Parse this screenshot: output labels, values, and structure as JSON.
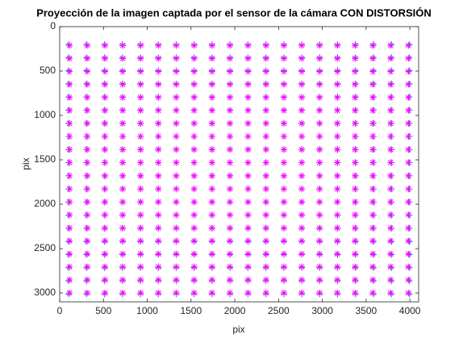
{
  "chart_data": {
    "type": "scatter",
    "title": "Proyección de la imagen captada por el sensor de la cámara CON DISTORSIÓN",
    "x_label": "pix",
    "y_label": "pix",
    "xlim": [
      0,
      4100
    ],
    "ylim": [
      0,
      3100
    ],
    "y_reversed": true,
    "xticks": [
      0,
      500,
      1000,
      1500,
      2000,
      2500,
      3000,
      3500,
      4000
    ],
    "yticks": [
      0,
      500,
      1000,
      1500,
      2000,
      2500,
      3000
    ],
    "series": [
      {
        "marker": "plus",
        "color": "#1f8fd8",
        "x": [
          102,
          307,
          512,
          717,
          922,
          1126,
          1331,
          1536,
          1741,
          1946,
          2150,
          2355,
          2560,
          2765,
          2970,
          3174,
          3379,
          3584,
          3789,
          3994
        ],
        "y": [
          200,
          348,
          496,
          644,
          792,
          940,
          1088,
          1236,
          1384,
          1532,
          1680,
          1828,
          1976,
          2124,
          2272,
          2420,
          2568,
          2716,
          2864,
          3012
        ]
      },
      {
        "marker": "asterisk",
        "color": "#ff00ff",
        "x": [
          112,
          314,
          517,
          720,
          924,
          1127,
          1331,
          1535,
          1739,
          1944,
          2152,
          2357,
          2561,
          2765,
          2968,
          3171,
          3374,
          3577,
          3780,
          3984
        ],
        "y": [
          212,
          358,
          504,
          650,
          797,
          943,
          1090,
          1237,
          1384,
          1531,
          1681,
          1828,
          1975,
          2121,
          2268,
          2414,
          2560,
          2706,
          2852,
          2999
        ]
      }
    ]
  }
}
